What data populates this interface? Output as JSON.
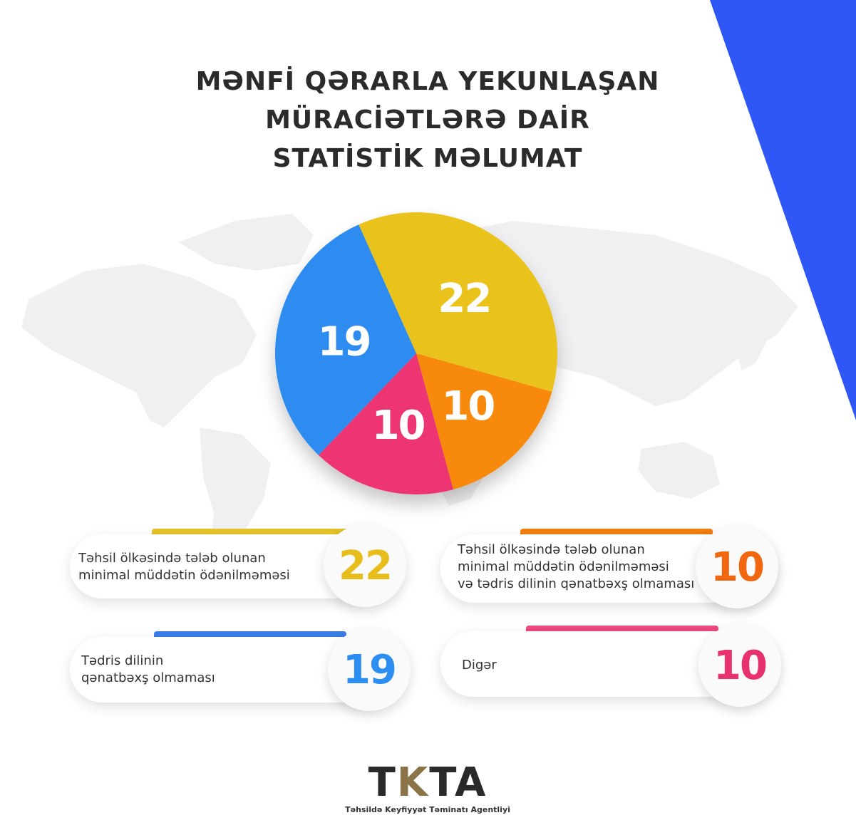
{
  "title_lines": [
    "MƏNFİ QƏRARLA YEKUNLAŞAN",
    "MÜRACİƏTLƏRƏ DAİR",
    "STATİSTİK MƏLUMAT"
  ],
  "chart_data": {
    "type": "pie",
    "title": "MƏNFİ QƏRARLA YEKUNLAŞAN MÜRACİƏTLƏRƏ DAİR STATİSTİK MƏLUMAT",
    "labels": [
      "Təhsil ölkəsində tələb olunan minimal müddətin ödənilməməsi",
      "Təhsil ölkəsində tələb olunan minimal müddətin ödənilməməsi və tədris dilinin qənatbəxş olmaması",
      "Digər",
      "Tədris dilinin qənatbəxş olmaması"
    ],
    "values": [
      22,
      10,
      10,
      19
    ],
    "colors": [
      "#e9c21d",
      "#f78a0c",
      "#ec3472",
      "#2f8cf0"
    ],
    "value_labels": [
      "22",
      "10",
      "10",
      "19"
    ]
  },
  "cards": {
    "c1": {
      "lines": [
        "Təhsil ölkəsində tələb olunan",
        "minimal müddətin ödənilməməsi"
      ],
      "value": "22",
      "color": "#e6bd1a"
    },
    "c2": {
      "lines": [
        "Təhsil ölkəsində tələb olunan",
        "minimal müddətin ödənilməməsi",
        "və tədris dilinin qənatbəxş olmaması"
      ],
      "value": "10",
      "color": "#f0670f"
    },
    "c3": {
      "lines": [
        "Tədris dilinin",
        "qənatbəxş olmaması"
      ],
      "value": "19",
      "color": "#2b8ef0"
    },
    "c4": {
      "lines": [
        "Digər"
      ],
      "value": "10",
      "color": "#e8326f"
    }
  },
  "logo": {
    "t1": "T",
    "k": "K",
    "rest": "TA",
    "subtitle": "Təhsildə Keyfiyyət Təminatı Agentliyi"
  }
}
